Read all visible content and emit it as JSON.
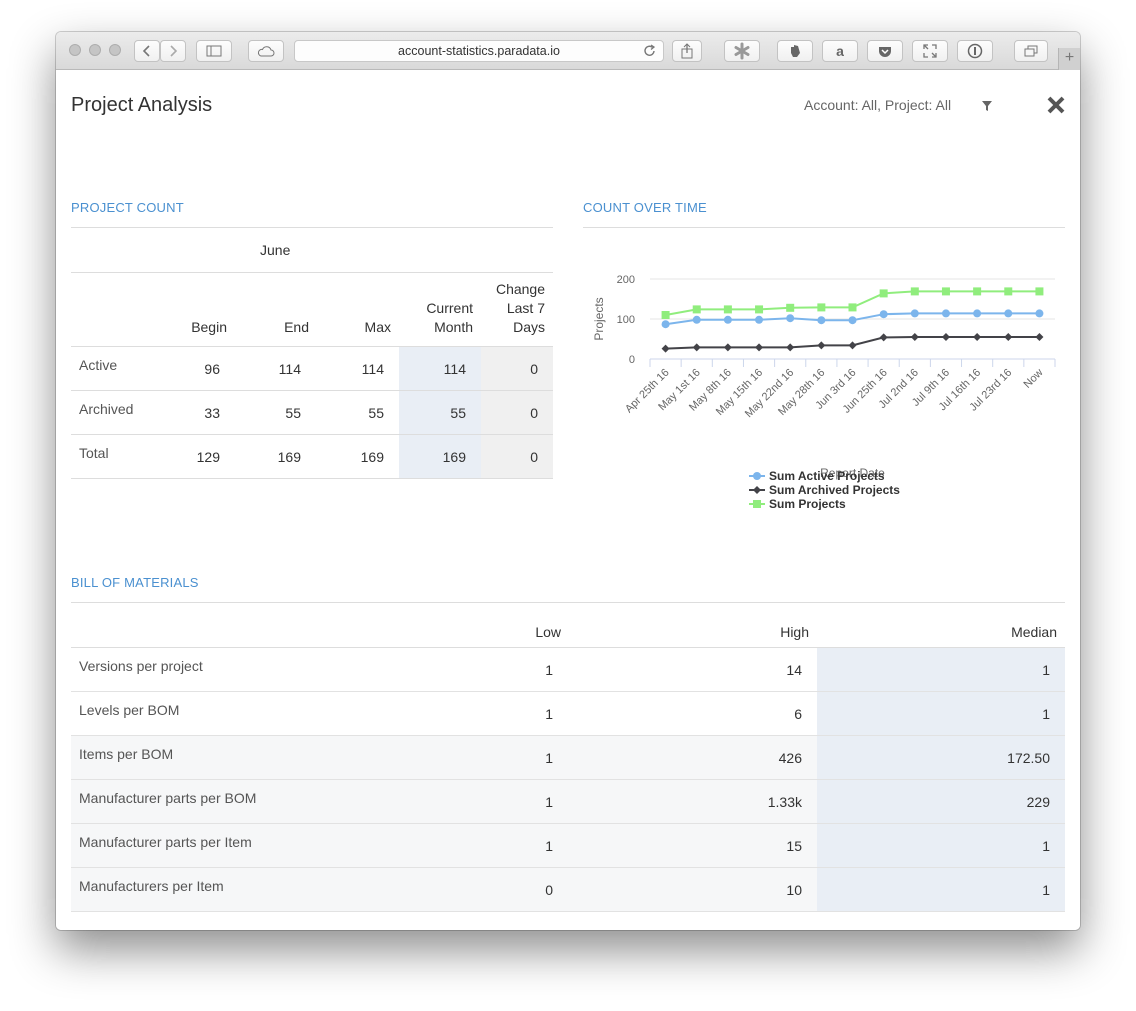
{
  "browser": {
    "url": "account-statistics.paradata.io",
    "new_tab_label": "+"
  },
  "header": {
    "title": "Project Analysis",
    "filter_text": "Account: All, Project: All"
  },
  "project_count": {
    "title": "PROJECT COUNT",
    "month": "June",
    "columns": {
      "begin": "Begin",
      "end": "End",
      "max": "Max",
      "current_l1": "Current",
      "current_l2": "Month",
      "change_l1": "Change",
      "change_l2": "Last 7",
      "change_l3": "Days"
    },
    "rows": [
      {
        "label": "Active",
        "begin": "96",
        "end": "114",
        "max": "114",
        "current": "114",
        "change": "0"
      },
      {
        "label": "Archived",
        "begin": "33",
        "end": "55",
        "max": "55",
        "current": "55",
        "change": "0"
      },
      {
        "label": "Total",
        "begin": "129",
        "end": "169",
        "max": "169",
        "current": "169",
        "change": "0"
      }
    ]
  },
  "count_over_time": {
    "title": "COUNT OVER TIME"
  },
  "chart_data": {
    "type": "line",
    "categories": [
      "Apr 25th 16",
      "May 1st 16",
      "May 8th 16",
      "May 15th 16",
      "May 22nd 16",
      "May 28th 16",
      "Jun 3rd 16",
      "Jun 25th 16",
      "Jul 2nd 16",
      "Jul 9th 16",
      "Jul 16th 16",
      "Jul 23rd 16",
      "Now"
    ],
    "series": [
      {
        "name": "Sum Active Projects",
        "color": "#7cb5ec",
        "marker": "circle",
        "values": [
          87,
          98,
          98,
          98,
          102,
          97,
          97,
          112,
          114,
          114,
          114,
          114,
          114
        ]
      },
      {
        "name": "Sum Archived Projects",
        "color": "#434348",
        "marker": "diamond",
        "values": [
          26,
          29,
          29,
          29,
          29,
          34,
          34,
          54,
          55,
          55,
          55,
          55,
          55
        ]
      },
      {
        "name": "Sum Projects",
        "color": "#90ed7d",
        "marker": "square",
        "values": [
          110,
          124,
          124,
          124,
          128,
          129,
          129,
          164,
          169,
          169,
          169,
          169,
          169
        ]
      }
    ],
    "xlabel": "Report Date",
    "ylabel": "Projects",
    "ylim": [
      0,
      200
    ],
    "yticks": [
      "0",
      "100",
      "200"
    ],
    "grid": true,
    "legend": "bottom"
  },
  "bom": {
    "title": "BILL OF MATERIALS",
    "columns": {
      "low": "Low",
      "high": "High",
      "median": "Median"
    },
    "rows": [
      {
        "label": "Versions per project",
        "low": "1",
        "high": "14",
        "median": "1"
      },
      {
        "label": "Levels per BOM",
        "low": "1",
        "high": "6",
        "median": "1"
      },
      {
        "label": "Items per BOM",
        "low": "1",
        "high": "426",
        "median": "172.50"
      },
      {
        "label": "Manufacturer parts per BOM",
        "low": "1",
        "high": "1.33k",
        "median": "229"
      },
      {
        "label": "Manufacturer parts per Item",
        "low": "1",
        "high": "15",
        "median": "1"
      },
      {
        "label": "Manufacturers per Item",
        "low": "0",
        "high": "10",
        "median": "1"
      }
    ]
  }
}
